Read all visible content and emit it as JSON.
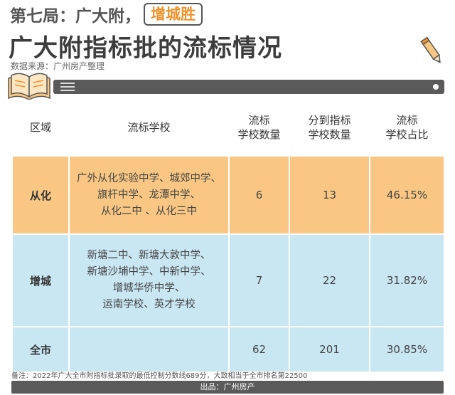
{
  "header": {
    "round_text": "第七局：广大附，",
    "winner": "增城胜",
    "title": "广大附指标批的流标情况",
    "source": "数据来源：广州房产整理"
  },
  "table": {
    "headers": {
      "region": "区域",
      "schools": "流标学校",
      "count": [
        "流标",
        "学校数量"
      ],
      "assigned": [
        "分到指标",
        "学校数量"
      ],
      "ratio": [
        "流标",
        "学校占比"
      ]
    },
    "rows": [
      {
        "region": "从化",
        "schools": [
          "广外从化实验中学、城郊中学、",
          "旗杆中学、龙潭中学、",
          "从化二中 、从化三中"
        ],
        "count": "6",
        "assigned": "13",
        "ratio": "46.15%"
      },
      {
        "region": "增城",
        "schools": [
          "新塘二中、新塘大敦中学、",
          "新塘沙埔中学、中新中学、",
          "增城华侨中学、",
          "运南学校、英才学校"
        ],
        "count": "7",
        "assigned": "22",
        "ratio": "31.82%"
      },
      {
        "region": "全市",
        "schools": [],
        "count": "62",
        "assigned": "201",
        "ratio": "30.85%"
      }
    ]
  },
  "note": "备注：2022年广大全市附指标批录取的最低控制分数线689分，大致相当于全市排名第22500",
  "footer": "出品：广州房产",
  "colors": {
    "accent_orange": "#f0922a",
    "conghua_row": "#f9c783",
    "zengcheng_row": "#c9e6f3",
    "bar": "#5a5a5a"
  },
  "icons": [
    "pencil-icon",
    "book-icon",
    "menu-icon",
    "dot-icon"
  ]
}
